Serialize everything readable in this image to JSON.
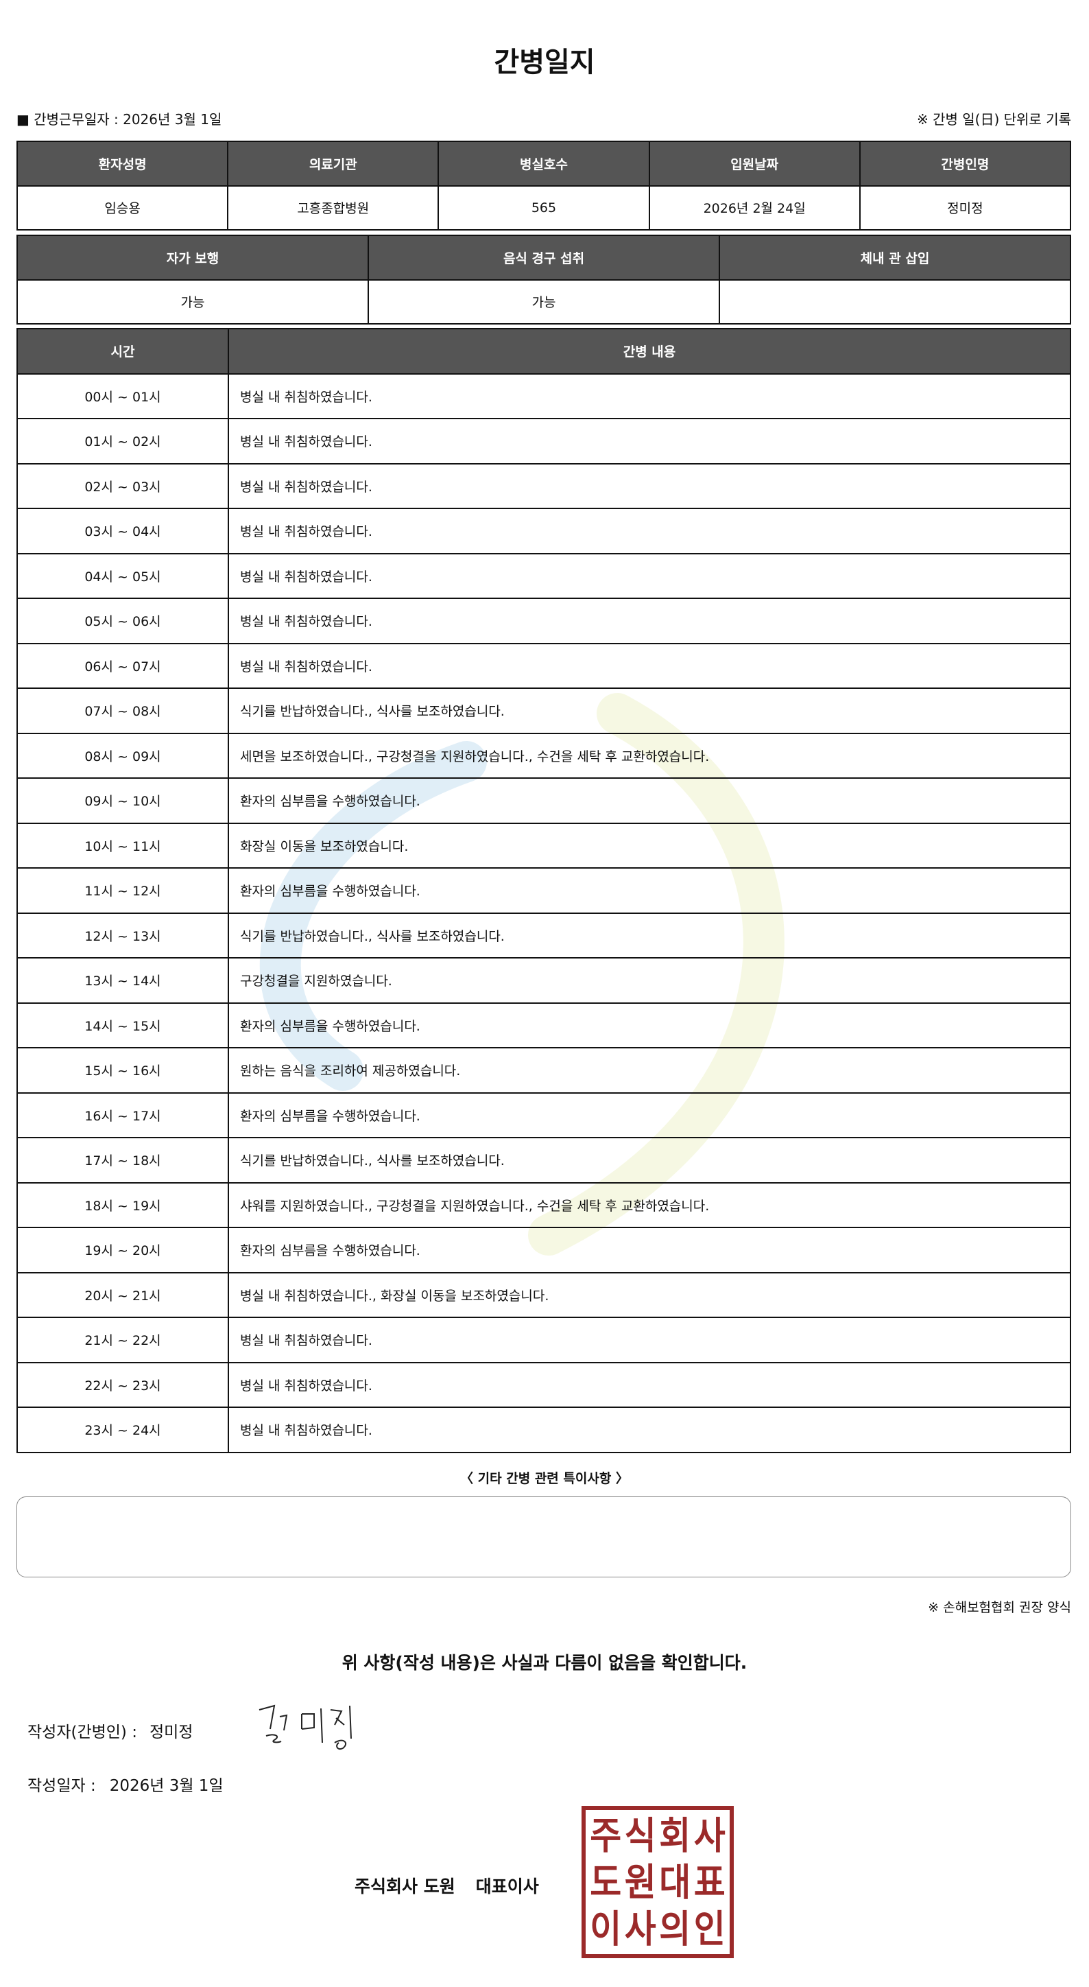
{
  "title": "간병일지",
  "work_date_label": "■ 간병근무일자  :   2026년 3월 1일",
  "record_note": "※ 간병 일(日) 단위로 기록",
  "patient_table": {
    "headers": [
      "환자성명",
      "의료기관",
      "병실호수",
      "입원날짜",
      "간병인명"
    ],
    "values": [
      "임승용",
      "고흥종합병원",
      "565",
      "2026년 2월 24일",
      "정미정"
    ]
  },
  "status_table": {
    "headers": [
      "자가 보행",
      "음식 경구 섭취",
      "체내 관 삽입"
    ],
    "values": [
      "가능",
      "가능",
      ""
    ]
  },
  "log_table": {
    "headers": [
      "시간",
      "간병 내용"
    ],
    "rows": [
      [
        "00시 ~ 01시",
        "병실 내 취침하였습니다."
      ],
      [
        "01시 ~ 02시",
        "병실 내 취침하였습니다."
      ],
      [
        "02시 ~ 03시",
        "병실 내 취침하였습니다."
      ],
      [
        "03시 ~ 04시",
        "병실 내 취침하였습니다."
      ],
      [
        "04시 ~ 05시",
        "병실 내 취침하였습니다."
      ],
      [
        "05시 ~ 06시",
        "병실 내 취침하였습니다."
      ],
      [
        "06시 ~ 07시",
        "병실 내 취침하였습니다."
      ],
      [
        "07시 ~ 08시",
        "식기를 반납하였습니다., 식사를 보조하였습니다."
      ],
      [
        "08시 ~ 09시",
        "세면을 보조하였습니다., 구강청결을 지원하였습니다., 수건을 세탁 후 교환하였습니다."
      ],
      [
        "09시 ~ 10시",
        "환자의 심부름을 수행하였습니다."
      ],
      [
        "10시 ~ 11시",
        "화장실 이동을 보조하였습니다."
      ],
      [
        "11시 ~ 12시",
        "환자의 심부름을 수행하였습니다."
      ],
      [
        "12시 ~ 13시",
        "식기를 반납하였습니다., 식사를 보조하였습니다."
      ],
      [
        "13시 ~ 14시",
        "구강청결을 지원하였습니다."
      ],
      [
        "14시 ~ 15시",
        "환자의 심부름을 수행하였습니다."
      ],
      [
        "15시 ~ 16시",
        "원하는 음식을 조리하여 제공하였습니다."
      ],
      [
        "16시 ~ 17시",
        "환자의 심부름을 수행하였습니다."
      ],
      [
        "17시 ~ 18시",
        "식기를 반납하였습니다., 식사를 보조하였습니다."
      ],
      [
        "18시 ~ 19시",
        "샤워를 지원하였습니다., 구강청결을 지원하였습니다., 수건을 세탁 후 교환하였습니다."
      ],
      [
        "19시 ~ 20시",
        "환자의 심부름을 수행하였습니다."
      ],
      [
        "20시 ~ 21시",
        "병실 내 취침하였습니다., 화장실 이동을 보조하였습니다."
      ],
      [
        "21시 ~ 22시",
        "병실 내 취침하였습니다."
      ],
      [
        "22시 ~ 23시",
        "병실 내 취침하였습니다."
      ],
      [
        "23시 ~ 24시",
        "병실 내 취침하였습니다."
      ]
    ]
  },
  "notes_label": "〈 기타 간병 관련 특이사항 〉",
  "notes_value": "",
  "form_note": "※ 손해보험협회 권장 양식",
  "confirm_text": "위 사항(작성 내용)은 사실과 다름이 없음을 확인합니다.",
  "writer": {
    "label": "작성자(간병인) :",
    "name": "정미정",
    "signature_text": "정미정"
  },
  "write_date": {
    "label": "작성일자 :",
    "value": "2026년 3월 1일"
  },
  "company": {
    "name": "주식회사 도원",
    "title": "대표이사"
  },
  "stamp": {
    "text": "주식회사도원대표이사의인",
    "color": "#9b2a2a"
  },
  "colors": {
    "header_bg": "#555555",
    "watermark_blue": "#d6e8f4",
    "watermark_yellow": "#f4f6dc"
  }
}
